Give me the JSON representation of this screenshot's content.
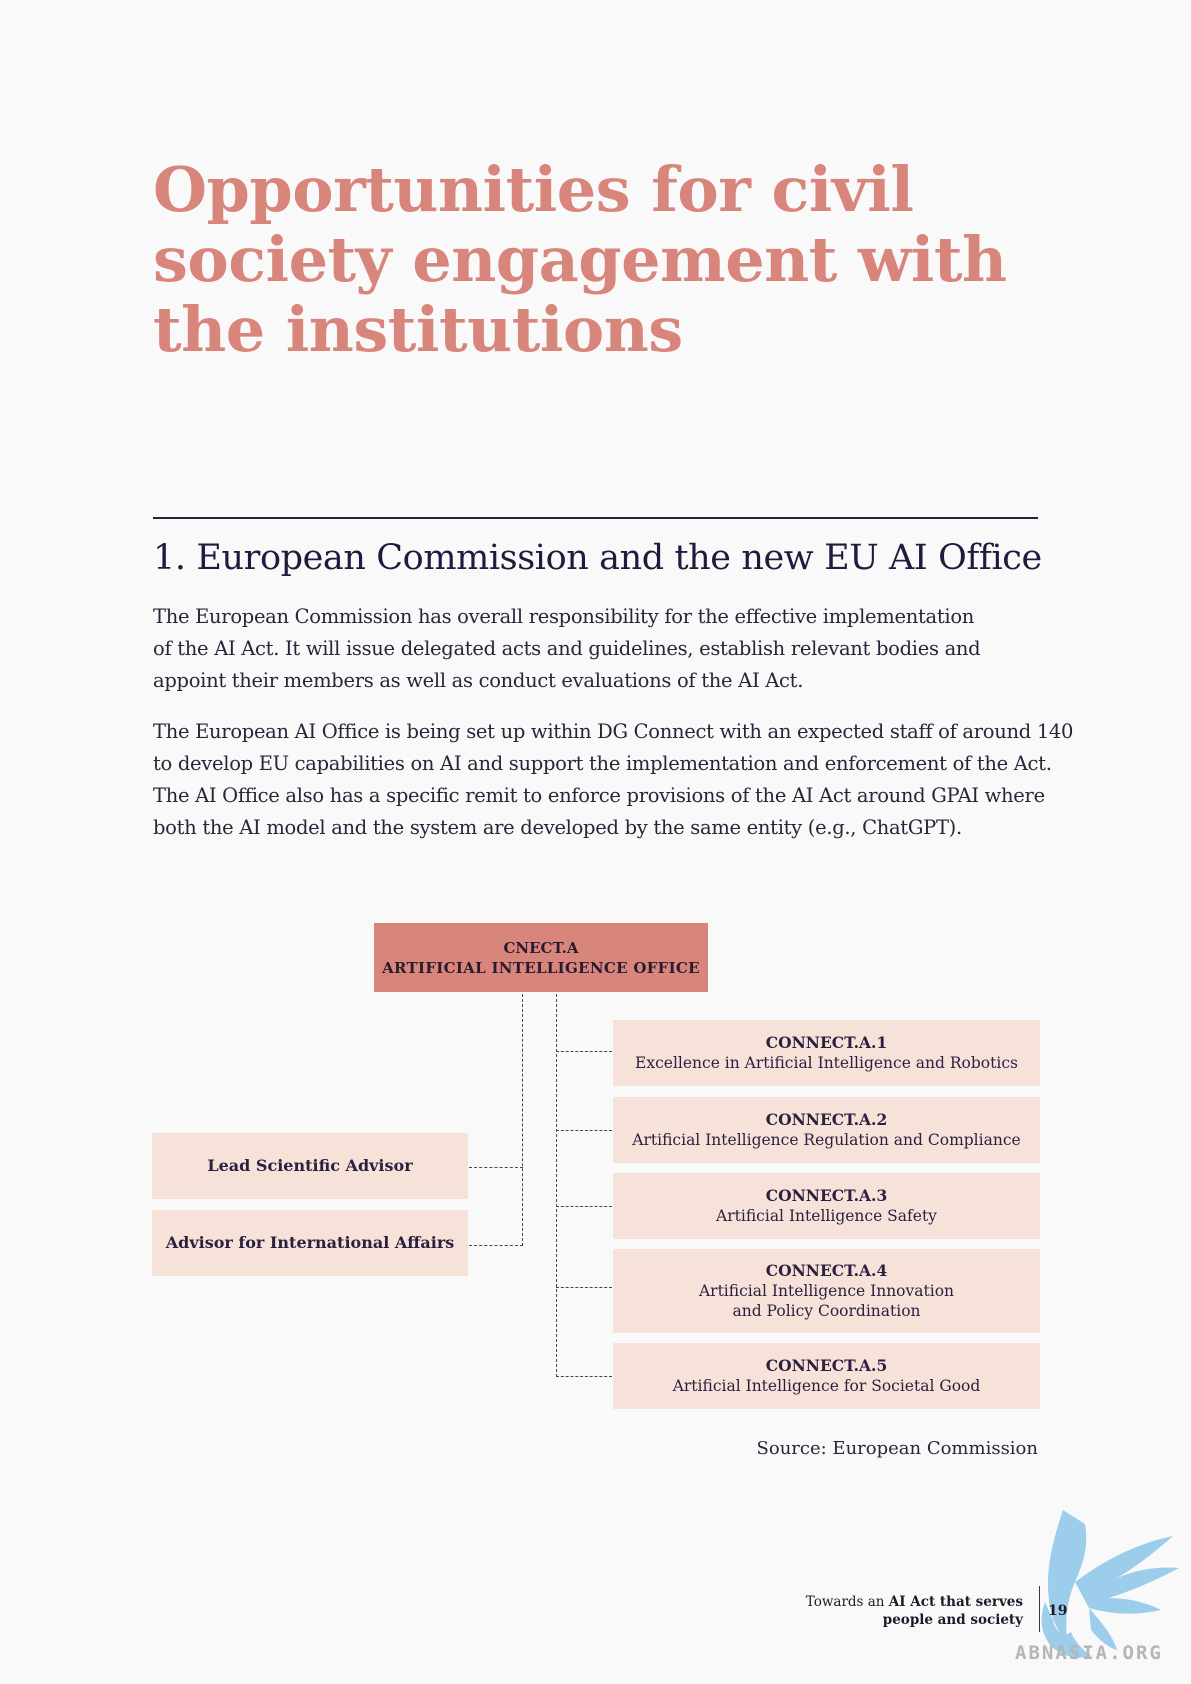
{
  "page": {
    "title_lines": [
      "Opportunities for civil",
      "society engagement with",
      "the institutions"
    ],
    "section_heading": "1. European Commission and the new EU AI Office",
    "paragraph_1_lines": [
      "The European Commission has overall responsibility for the effective implementation",
      "of the AI Act. It will issue delegated acts and guidelines, establish relevant bodies and",
      "appoint their members as well as conduct evaluations of the AI Act."
    ],
    "paragraph_2_lines": [
      "The European AI Office is being set up within DG Connect with an expected staff of around 140",
      "to develop EU capabilities on AI and support the implementation and enforcement of the Act.",
      "The AI Office also has a specific remit to enforce provisions of the AI Act around GPAI where",
      "both the AI model and the system are developed by the same entity (e.g., ChatGPT)."
    ]
  },
  "org_chart": {
    "root": {
      "code": "CNECT.A",
      "name": "ARTIFICIAL INTELLIGENCE OFFICE"
    },
    "advisors": [
      "Lead Scientific Advisor",
      "Advisor for International Affairs"
    ],
    "units": [
      {
        "code": "CONNECT.A.1",
        "lines": [
          "Excellence in Artificial Intelligence and Robotics"
        ]
      },
      {
        "code": "CONNECT.A.2",
        "lines": [
          "Artificial Intelligence Regulation and Compliance"
        ]
      },
      {
        "code": "CONNECT.A.3",
        "lines": [
          "Artificial Intelligence Safety"
        ]
      },
      {
        "code": "CONNECT.A.4",
        "lines": [
          "Artificial Intelligence Innovation",
          "and Policy Coordination"
        ]
      },
      {
        "code": "CONNECT.A.5",
        "lines": [
          "Artificial Intelligence for Societal Good"
        ]
      }
    ],
    "source": "Source: European Commission"
  },
  "footer": {
    "line1_prefix": "Towards an ",
    "line1_bold": "AI Act that serves",
    "line2_bold": "people and society",
    "page_number": "19",
    "watermark": "ABNASIA.ORG"
  },
  "colors": {
    "title": "#d8857c",
    "root_box": "#d8857c",
    "unit_box": "#f7e2da",
    "heading": "#23183d",
    "watermark_logo": "#8cc6e8"
  }
}
